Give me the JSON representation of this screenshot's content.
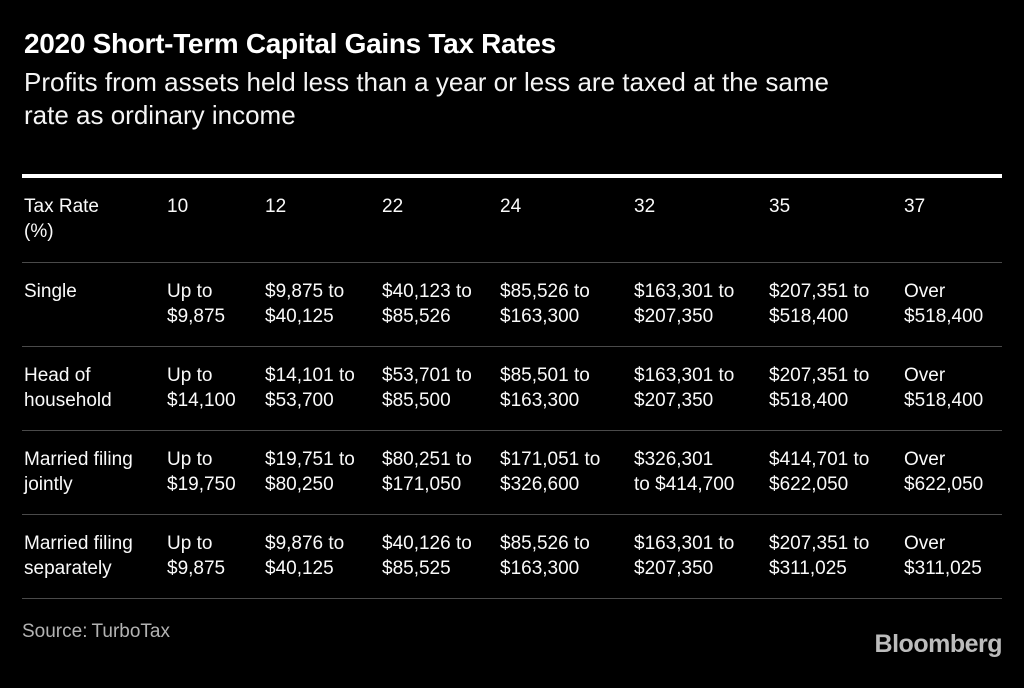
{
  "page": {
    "title": "2020 Short-Term Capital Gains Tax Rates",
    "subtitle": "Profits from assets held less than a year or less are taxed at the same\nrate as ordinary income",
    "source_label": "Source:",
    "source_value": "TurboTax",
    "logo": "Bloomberg",
    "colors": {
      "background": "#000000",
      "text": "#ffffff",
      "muted_text": "#b3b3b3",
      "rule_thick": "#ffffff",
      "rule_thin": "#4a4a4a"
    }
  },
  "table": {
    "col_headers": [
      "Tax Rate\n(%)",
      "10",
      "12",
      "22",
      "24",
      "32",
      "35",
      "37"
    ],
    "rows": [
      {
        "label": "Single",
        "cells": [
          "Up to\n$9,875",
          "$9,875 to\n$40,125",
          "$40,123 to\n$85,526",
          "$85,526 to\n$163,300",
          "$163,301 to\n$207,350",
          "$207,351 to\n$518,400",
          "Over\n$518,400"
        ]
      },
      {
        "label": "Head of\nhousehold",
        "cells": [
          "Up to\n$14,100",
          "$14,101 to\n$53,700",
          "$53,701 to\n$85,500",
          "$85,501 to\n$163,300",
          "$163,301 to\n$207,350",
          "$207,351 to\n$518,400",
          "Over\n$518,400"
        ]
      },
      {
        "label": "Married filing\njointly",
        "cells": [
          "Up to\n$19,750",
          "$19,751 to\n$80,250",
          "$80,251 to\n$171,050",
          "$171,051 to\n$326,600",
          "$326,301\nto $414,700",
          "$414,701 to\n$622,050",
          "Over\n$622,050"
        ]
      },
      {
        "label": "Married filing\nseparately",
        "cells": [
          "Up to\n$9,875",
          "$9,876 to\n$40,125",
          "$40,126 to\n$85,525",
          "$85,526 to\n$163,300",
          "$163,301 to\n$207,350",
          "$207,351 to\n$311,025",
          "Over\n$311,025"
        ]
      }
    ]
  },
  "chart_data": {
    "type": "table",
    "title": "2020 Short-Term Capital Gains Tax Rates",
    "subtitle": "Profits from assets held less than a year or less are taxed at the same rate as ordinary income",
    "columns": [
      "Tax Rate (%)",
      "10",
      "12",
      "22",
      "24",
      "32",
      "35",
      "37"
    ],
    "rows": [
      {
        "filing_status": "Single",
        "brackets": [
          "Up to $9,875",
          "$9,875 to $40,125",
          "$40,123 to $85,526",
          "$85,526 to $163,300",
          "$163,301 to $207,350",
          "$207,351 to $518,400",
          "Over $518,400"
        ]
      },
      {
        "filing_status": "Head of household",
        "brackets": [
          "Up to $14,100",
          "$14,101 to $53,700",
          "$53,701 to $85,500",
          "$85,501 to $163,300",
          "$163,301 to $207,350",
          "$207,351 to $518,400",
          "Over $518,400"
        ]
      },
      {
        "filing_status": "Married filing jointly",
        "brackets": [
          "Up to $19,750",
          "$19,751 to $80,250",
          "$80,251 to $171,050",
          "$171,051 to $326,600",
          "$326,301 to $414,700",
          "$414,701 to $622,050",
          "Over $622,050"
        ]
      },
      {
        "filing_status": "Married filing separately",
        "brackets": [
          "Up to $9,875",
          "$9,876 to $40,125",
          "$40,126 to $85,525",
          "$85,526 to $163,300",
          "$163,301 to $207,350",
          "$207,351 to $311,025",
          "Over $311,025"
        ]
      }
    ],
    "source": "TurboTax"
  }
}
